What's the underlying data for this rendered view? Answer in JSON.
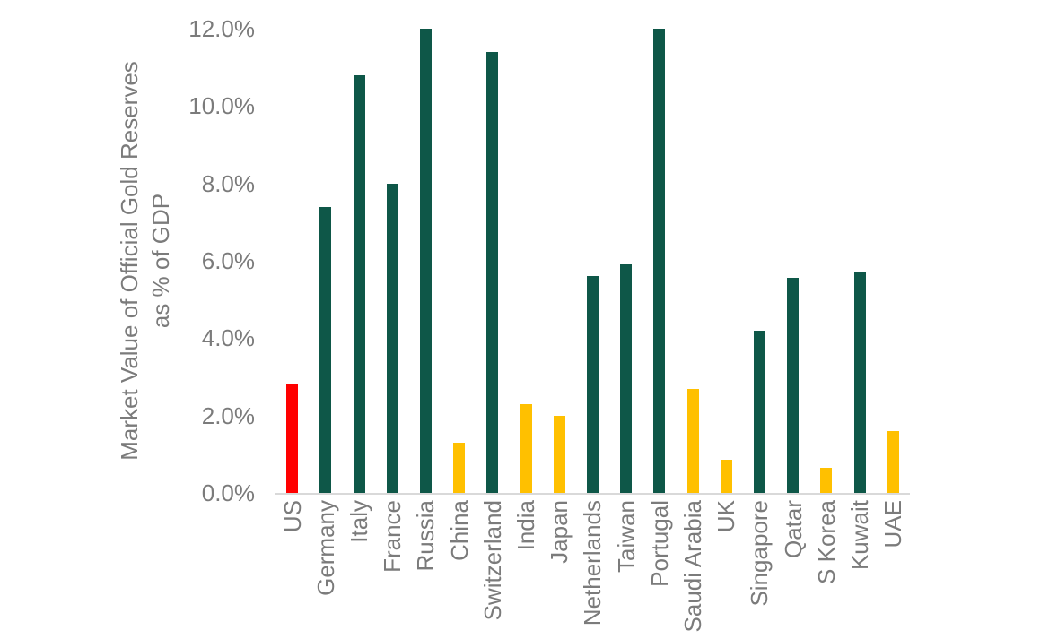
{
  "chart_data": {
    "type": "bar",
    "title": "",
    "ylabel_line1": "Market Value of Official Gold Reserves",
    "ylabel_line2": "as % of GDP",
    "xlabel": "",
    "categories": [
      "US",
      "Germany",
      "Italy",
      "France",
      "Russia",
      "China",
      "Switzerland",
      "India",
      "Japan",
      "Netherlands",
      "Taiwan",
      "Portugal",
      "Saudi Arabia",
      "UK",
      "Singapore",
      "Qatar",
      "S Korea",
      "Kuwait",
      "UAE"
    ],
    "values": [
      2.8,
      7.4,
      10.8,
      8.0,
      12.0,
      1.3,
      11.4,
      2.3,
      2.0,
      5.6,
      5.9,
      12.0,
      2.7,
      0.85,
      4.2,
      5.55,
      0.65,
      5.7,
      1.6
    ],
    "bar_colors": [
      "#ff0000",
      "#0e5748",
      "#0e5748",
      "#0e5748",
      "#0e5748",
      "#ffc000",
      "#0e5748",
      "#ffc000",
      "#ffc000",
      "#0e5748",
      "#0e5748",
      "#0e5748",
      "#ffc000",
      "#ffc000",
      "#0e5748",
      "#0e5748",
      "#ffc000",
      "#0e5748",
      "#ffc000"
    ],
    "ylim": [
      0,
      12
    ],
    "yticks": [
      0,
      2,
      4,
      6,
      8,
      10,
      12
    ],
    "ytick_labels": [
      "0.0%",
      "2.0%",
      "4.0%",
      "6.0%",
      "8.0%",
      "10.0%",
      "12.0%"
    ],
    "grid": false,
    "legend": false,
    "colors": {
      "highlight_us": "#ff0000",
      "large_holders_green": "#0e5748",
      "small_holders_gold": "#ffc000",
      "axis_text": "#7b7b7b",
      "axis_line": "#d9d9d9"
    }
  }
}
